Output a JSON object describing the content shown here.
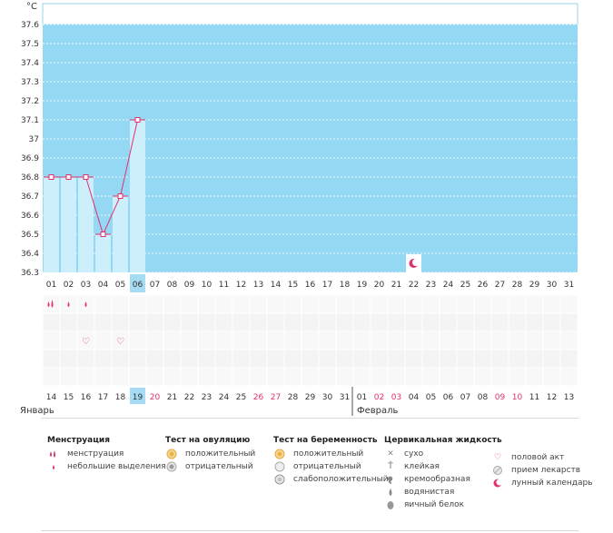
{
  "unit_label": "°C",
  "colors": {
    "plot_bg": "#94d8f3",
    "bar_fill": "#cdeefb",
    "line": "#e0306e",
    "highlight": "#a5dcf3",
    "weekend": "#e0306e"
  },
  "months": {
    "first": "Январь",
    "second": "Февраль"
  },
  "chart_data": {
    "type": "line",
    "y_ticks": [
      "37.6",
      "37.5",
      "37.4",
      "37.3",
      "37.2",
      "37.1",
      "37",
      "36.9",
      "36.8",
      "36.7",
      "36.6",
      "36.5",
      "36.4",
      "36.3"
    ],
    "ylim": [
      36.3,
      37.6
    ],
    "cycle_days": [
      "01",
      "02",
      "03",
      "04",
      "05",
      "06",
      "07",
      "08",
      "09",
      "10",
      "11",
      "12",
      "13",
      "14",
      "15",
      "16",
      "17",
      "18",
      "19",
      "20",
      "21",
      "22",
      "23",
      "24",
      "25",
      "26",
      "27",
      "28",
      "29",
      "30",
      "31"
    ],
    "temps": [
      36.8,
      36.8,
      36.8,
      36.5,
      36.7,
      37.1
    ],
    "current_cycle_day": "06",
    "moon_day": "22"
  },
  "calendar_dates": [
    {
      "d": "14",
      "w": false
    },
    {
      "d": "15",
      "w": false
    },
    {
      "d": "16",
      "w": false
    },
    {
      "d": "17",
      "w": false
    },
    {
      "d": "18",
      "w": false
    },
    {
      "d": "19",
      "w": false,
      "today": true
    },
    {
      "d": "20",
      "w": true
    },
    {
      "d": "21",
      "w": false
    },
    {
      "d": "22",
      "w": false
    },
    {
      "d": "23",
      "w": false
    },
    {
      "d": "24",
      "w": false
    },
    {
      "d": "25",
      "w": false
    },
    {
      "d": "26",
      "w": true
    },
    {
      "d": "27",
      "w": true
    },
    {
      "d": "28",
      "w": false
    },
    {
      "d": "29",
      "w": false
    },
    {
      "d": "30",
      "w": false
    },
    {
      "d": "31",
      "w": false
    },
    {
      "d": "01",
      "w": false
    },
    {
      "d": "02",
      "w": true
    },
    {
      "d": "03",
      "w": true
    },
    {
      "d": "04",
      "w": false
    },
    {
      "d": "05",
      "w": false
    },
    {
      "d": "06",
      "w": false
    },
    {
      "d": "07",
      "w": false
    },
    {
      "d": "08",
      "w": false
    },
    {
      "d": "09",
      "w": true
    },
    {
      "d": "10",
      "w": true
    },
    {
      "d": "11",
      "w": false
    },
    {
      "d": "12",
      "w": false
    },
    {
      "d": "13",
      "w": false
    }
  ],
  "markers": {
    "menstruation": [
      {
        "day": 0,
        "kind": "heavy"
      },
      {
        "day": 1,
        "kind": "light"
      },
      {
        "day": 2,
        "kind": "light"
      }
    ],
    "intercourse": [
      2,
      4
    ]
  },
  "legend": {
    "menstruation": {
      "title": "Менструация",
      "items": [
        {
          "icon": "drop-pair-icon",
          "label": "менструация"
        },
        {
          "icon": "small-drop-icon",
          "label": "небольшие выделения"
        }
      ]
    },
    "ovulation": {
      "title": "Тест на овуляцию",
      "items": [
        {
          "icon": "positive-circle-icon",
          "label": "положительный"
        },
        {
          "icon": "negative-circle-icon",
          "label": "отрицательный"
        }
      ]
    },
    "pregnancy": {
      "title": "Тест на беременность",
      "items": [
        {
          "icon": "positive-circle-icon",
          "label": "положительный"
        },
        {
          "icon": "negative-circle-icon",
          "label": "отрицательный"
        },
        {
          "icon": "weak-circle-icon",
          "label": "слабоположительный"
        }
      ]
    },
    "cervical": {
      "title": "Цервикальная жидкость",
      "items": [
        {
          "icon": "cross-icon",
          "label": "сухо"
        },
        {
          "icon": "sticky-icon",
          "label": "клейкая"
        },
        {
          "icon": "creamy-icon",
          "label": "кремообразная"
        },
        {
          "icon": "watery-icon",
          "label": "водянистая"
        },
        {
          "icon": "eggwhite-icon",
          "label": "яичный белок"
        }
      ]
    },
    "other": {
      "items": [
        {
          "icon": "heart-icon",
          "label": "половой акт"
        },
        {
          "icon": "pill-icon",
          "label": "прием лекарств"
        },
        {
          "icon": "moon-icon",
          "label": "лунный календарь"
        }
      ]
    }
  }
}
